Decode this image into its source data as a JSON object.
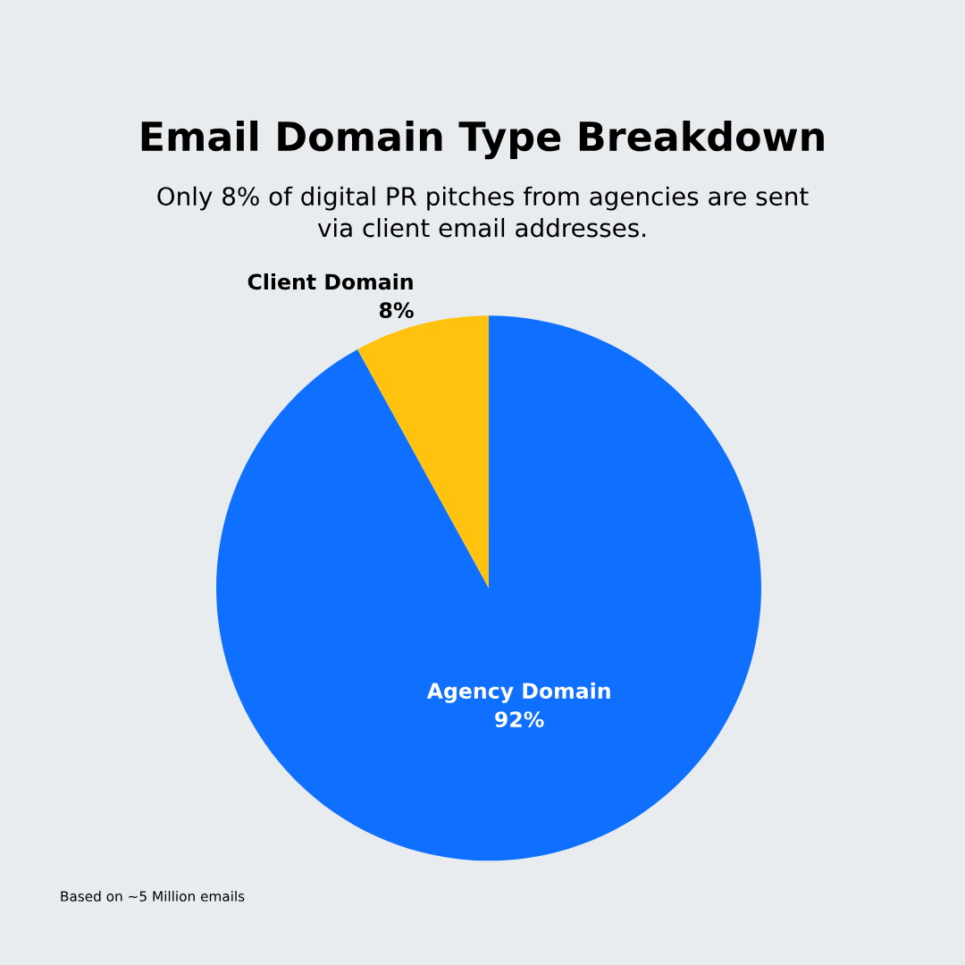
{
  "chart_data": {
    "type": "pie",
    "title": "Email Domain Type Breakdown",
    "subtitle": "Only 8% of digital PR pitches from agencies are sent\nvia client email addresses.",
    "categories": [
      "Agency Domain",
      "Client Domain"
    ],
    "values": [
      92,
      8
    ],
    "value_labels": [
      "92%",
      "8%"
    ],
    "colors": [
      "#0f6fff",
      "#ffc20e"
    ],
    "legend": false,
    "annotations": [
      "Based on ~5 Million emails"
    ]
  }
}
